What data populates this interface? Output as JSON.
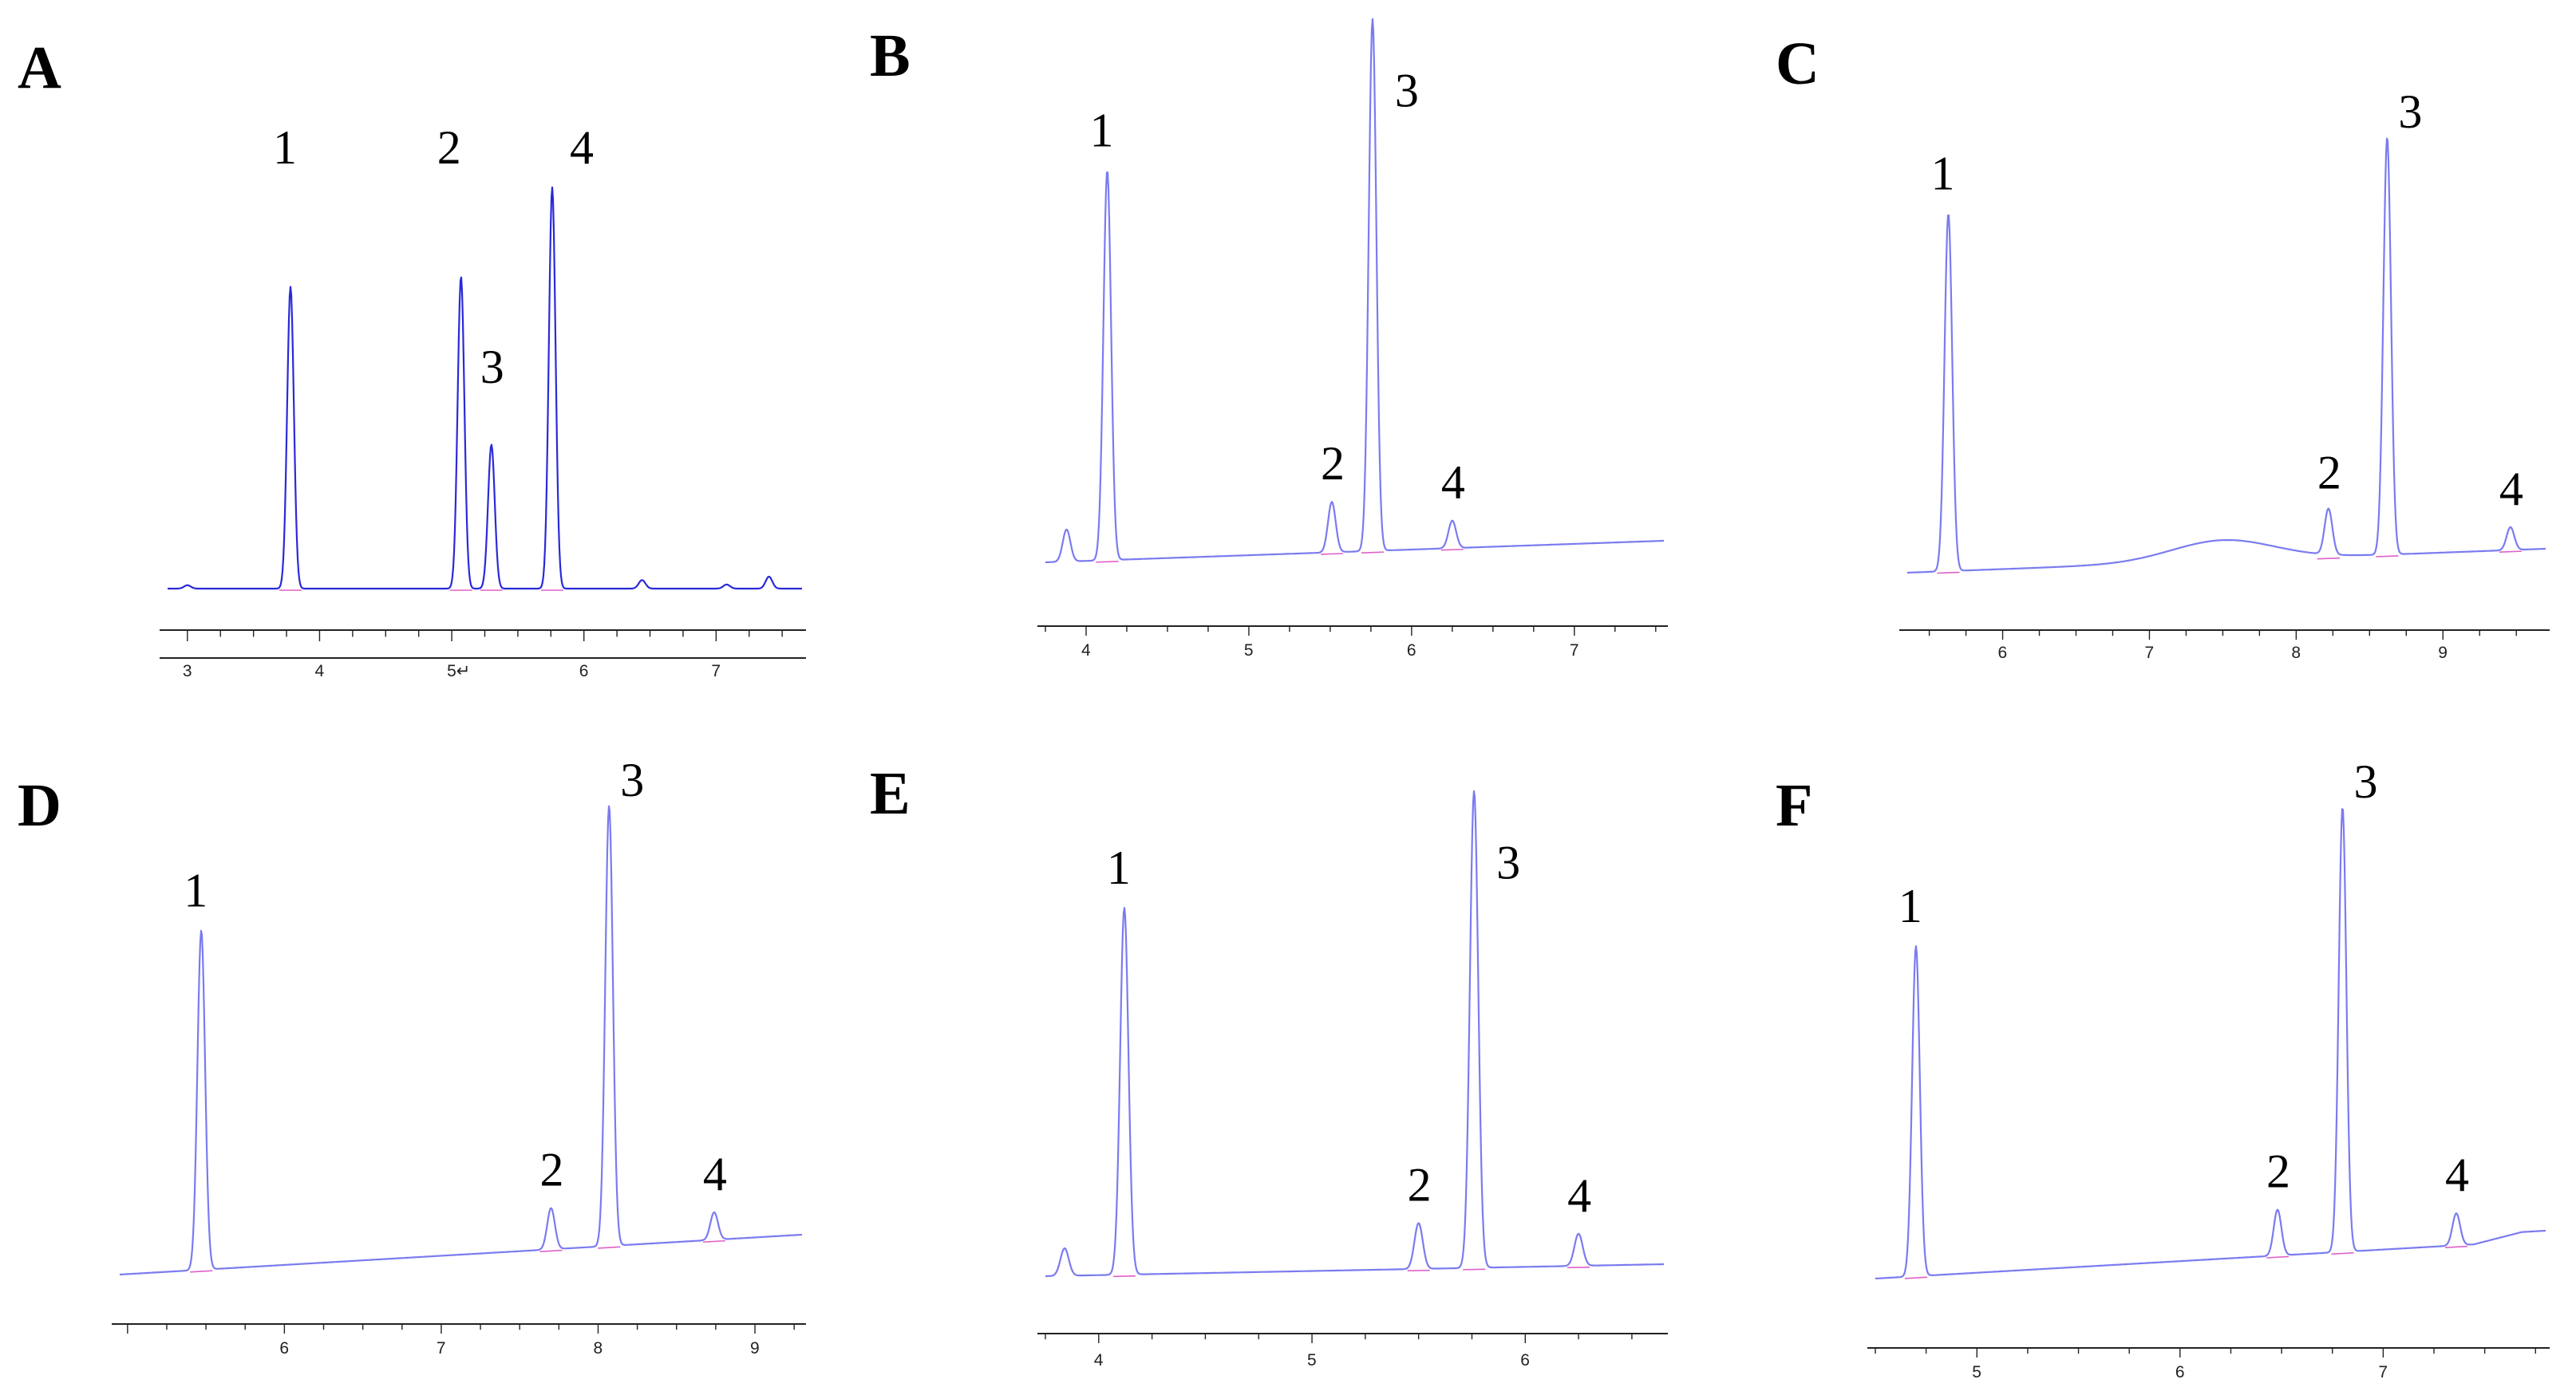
{
  "colors": {
    "trace_dark": "#2a2ad8",
    "trace_light": "#7b7bf0",
    "baseline_marker": "#e060c8",
    "axis": "#222222"
  },
  "chart_data": [
    {
      "panel": "A",
      "type": "line",
      "peak_labels": [
        "1",
        "2",
        "3",
        "4"
      ],
      "x_ticks": [
        "3",
        "4",
        "5↵",
        "6",
        "7"
      ],
      "xlim": [
        2.85,
        7.65
      ],
      "peaks": [
        {
          "label": "1",
          "x": 3.78,
          "height": 0.88
        },
        {
          "label": "2",
          "x": 5.07,
          "height": 0.91
        },
        {
          "label": "3",
          "x": 5.3,
          "height": 0.42
        },
        {
          "label": "4",
          "x": 5.76,
          "height": 1.17
        }
      ],
      "minor_peaks": [
        {
          "x": 3.0,
          "height": 0.01
        },
        {
          "x": 6.44,
          "height": 0.025
        },
        {
          "x": 7.08,
          "height": 0.012
        },
        {
          "x": 7.4,
          "height": 0.035
        }
      ]
    },
    {
      "panel": "B",
      "type": "line",
      "peak_labels": [
        "1",
        "2",
        "3",
        "4"
      ],
      "x_ticks": [
        "4",
        "5",
        "6",
        "7"
      ],
      "xlim": [
        3.75,
        7.55
      ],
      "peaks": [
        {
          "label": "1",
          "x": 4.13,
          "height": 0.85
        },
        {
          "label": "2",
          "x": 5.51,
          "height": 0.11
        },
        {
          "label": "3",
          "x": 5.76,
          "height": 1.16
        },
        {
          "label": "4",
          "x": 6.25,
          "height": 0.06
        }
      ],
      "minor_peaks": [
        {
          "x": 3.88,
          "height": 0.07
        }
      ]
    },
    {
      "panel": "C",
      "type": "line",
      "peak_labels": [
        "1",
        "2",
        "3",
        "4"
      ],
      "x_ticks": [
        "6",
        "7",
        "8",
        "9"
      ],
      "xlim": [
        5.35,
        9.7
      ],
      "peaks": [
        {
          "label": "1",
          "x": 5.63,
          "height": 0.78
        },
        {
          "label": "2",
          "x": 8.22,
          "height": 0.1
        },
        {
          "label": "3",
          "x": 8.62,
          "height": 0.91
        },
        {
          "label": "4",
          "x": 9.46,
          "height": 0.05
        }
      ],
      "minor_peaks": []
    },
    {
      "panel": "D",
      "type": "line",
      "peak_labels": [
        "1",
        "2",
        "3",
        "4"
      ],
      "x_ticks": [
        "6",
        "7",
        "8",
        "9"
      ],
      "xlim": [
        4.95,
        9.3
      ],
      "peaks": [
        {
          "label": "1",
          "x": 5.47,
          "height": 0.74
        },
        {
          "label": "2",
          "x": 7.7,
          "height": 0.09
        },
        {
          "label": "3",
          "x": 8.07,
          "height": 0.96
        },
        {
          "label": "4",
          "x": 8.74,
          "height": 0.06
        }
      ],
      "minor_peaks": []
    },
    {
      "panel": "E",
      "type": "line",
      "peak_labels": [
        "1",
        "2",
        "3",
        "4"
      ],
      "x_ticks": [
        "4",
        "5",
        "6"
      ],
      "xlim": [
        3.75,
        6.65
      ],
      "peaks": [
        {
          "label": "1",
          "x": 4.12,
          "height": 0.8
        },
        {
          "label": "2",
          "x": 5.5,
          "height": 0.1
        },
        {
          "label": "3",
          "x": 5.76,
          "height": 1.04
        },
        {
          "label": "4",
          "x": 6.25,
          "height": 0.07
        }
      ],
      "minor_peaks": [
        {
          "x": 3.84,
          "height": 0.06
        }
      ]
    },
    {
      "panel": "F",
      "type": "line",
      "peak_labels": [
        "1",
        "2",
        "3",
        "4"
      ],
      "x_ticks": [
        "5",
        "6",
        "7"
      ],
      "xlim": [
        4.5,
        7.8
      ],
      "peaks": [
        {
          "label": "1",
          "x": 4.7,
          "height": 0.72
        },
        {
          "label": "2",
          "x": 6.48,
          "height": 0.1
        },
        {
          "label": "3",
          "x": 6.8,
          "height": 0.97
        },
        {
          "label": "4",
          "x": 7.36,
          "height": 0.07
        }
      ],
      "minor_peaks": []
    }
  ]
}
